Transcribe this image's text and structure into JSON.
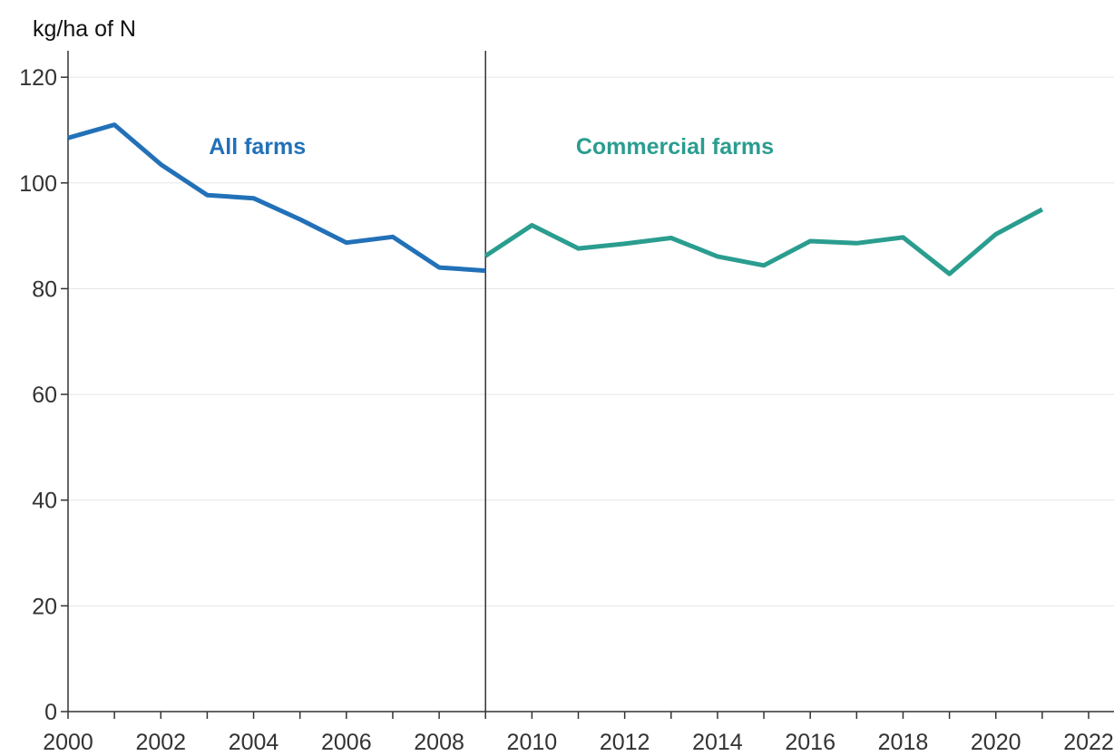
{
  "chart_data": {
    "type": "line",
    "ylabel": "kg/ha of N",
    "xlim": [
      2000,
      2022
    ],
    "ylim": [
      0,
      125
    ],
    "x_ticks": [
      2000,
      2002,
      2004,
      2006,
      2008,
      2010,
      2012,
      2014,
      2016,
      2018,
      2020,
      2022
    ],
    "y_ticks": [
      0,
      20,
      40,
      60,
      80,
      100,
      120
    ],
    "grid": "horizontal",
    "divider_x": 2009,
    "series": [
      {
        "name": "All farms",
        "color": "#2271b8",
        "x": [
          2000,
          2001,
          2002,
          2003,
          2004,
          2005,
          2006,
          2007,
          2008,
          2009
        ],
        "y": [
          108.5,
          111,
          103.5,
          97.7,
          97.1,
          93.1,
          88.7,
          89.8,
          84,
          83.4
        ]
      },
      {
        "name": "Commercial farms",
        "color": "#2a9d8f",
        "x": [
          2009,
          2010,
          2011,
          2012,
          2013,
          2014,
          2015,
          2016,
          2017,
          2018,
          2019,
          2020,
          2021
        ],
        "y": [
          86.2,
          92,
          87.6,
          88.5,
          89.6,
          86.1,
          84.4,
          89,
          88.6,
          89.7,
          82.8,
          90.3,
          95
        ]
      }
    ],
    "annotations": [
      {
        "text": "All farms",
        "x": 2005,
        "y": 107,
        "color": "#2271b8"
      },
      {
        "text": "Commercial farms",
        "x": 2014,
        "y": 107,
        "color": "#2a9d8f"
      }
    ]
  }
}
